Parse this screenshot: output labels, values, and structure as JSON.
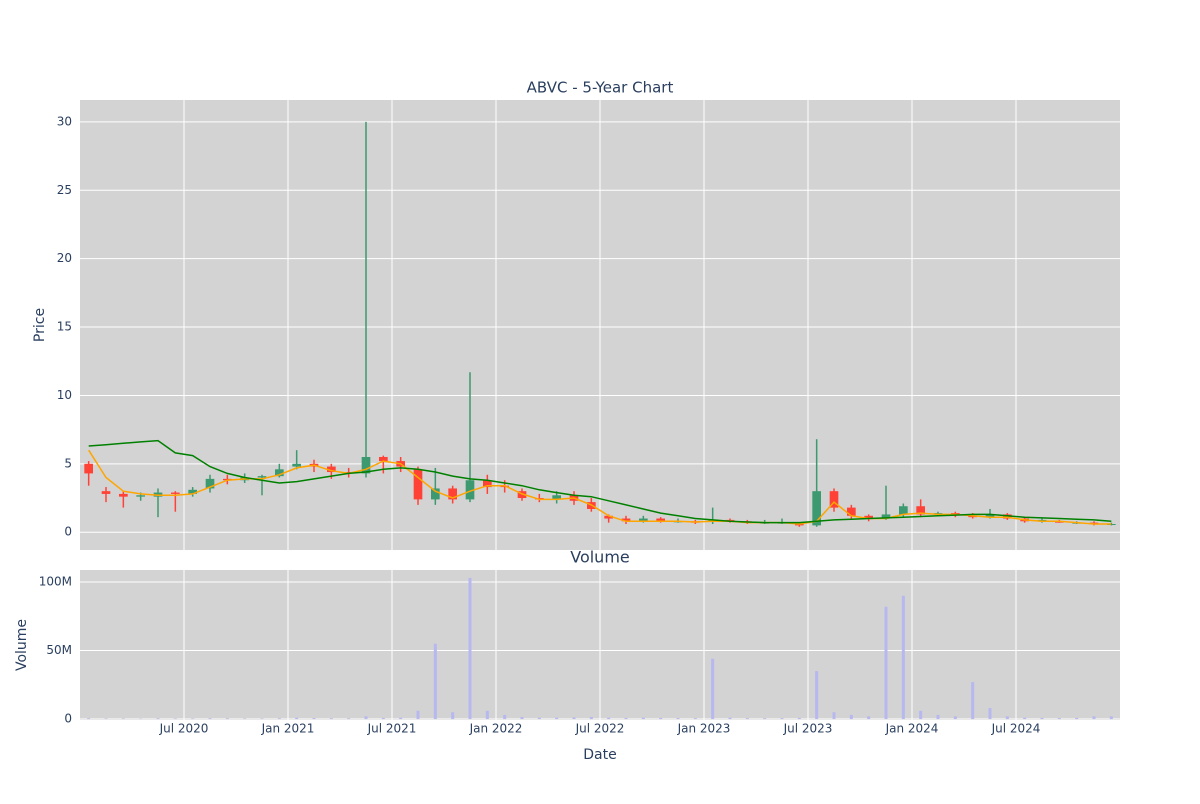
{
  "chart_data": [
    {
      "type": "candlestick",
      "title": "ABVC - 5-Year Chart",
      "y_label": "Price",
      "x": [
        "2020-01",
        "2020-02",
        "2020-03",
        "2020-04",
        "2020-05",
        "2020-06",
        "2020-07",
        "2020-08",
        "2020-09",
        "2020-10",
        "2020-11",
        "2020-12",
        "2021-01",
        "2021-02",
        "2021-03",
        "2021-04",
        "2021-05",
        "2021-06",
        "2021-07",
        "2021-08",
        "2021-09",
        "2021-10",
        "2021-11",
        "2021-12",
        "2022-01",
        "2022-02",
        "2022-03",
        "2022-04",
        "2022-05",
        "2022-06",
        "2022-07",
        "2022-08",
        "2022-09",
        "2022-10",
        "2022-11",
        "2022-12",
        "2023-01",
        "2023-02",
        "2023-03",
        "2023-04",
        "2023-05",
        "2023-06",
        "2023-07",
        "2023-08",
        "2023-09",
        "2023-10",
        "2023-11",
        "2023-12",
        "2024-01",
        "2024-02",
        "2024-03",
        "2024-04",
        "2024-05",
        "2024-06",
        "2024-07",
        "2024-08",
        "2024-09",
        "2024-10",
        "2024-11",
        "2024-12"
      ],
      "open": [
        5.0,
        3.0,
        2.8,
        2.6,
        2.6,
        2.9,
        2.8,
        3.2,
        3.9,
        3.8,
        4.0,
        4.1,
        4.8,
        5.0,
        4.8,
        4.4,
        4.3,
        5.5,
        5.2,
        4.6,
        2.4,
        3.2,
        2.4,
        3.8,
        3.4,
        3.0,
        2.5,
        2.4,
        2.7,
        2.2,
        1.2,
        1.0,
        0.8,
        1.0,
        0.8,
        0.8,
        0.8,
        0.9,
        0.8,
        0.7,
        0.7,
        0.6,
        0.5,
        3.0,
        1.8,
        1.2,
        1.0,
        1.3,
        1.9,
        1.3,
        1.4,
        1.2,
        1.1,
        1.3,
        1.0,
        0.8,
        0.8,
        0.7,
        0.7,
        0.6
      ],
      "high": [
        5.2,
        3.3,
        3.0,
        2.9,
        3.2,
        3.0,
        3.3,
        4.2,
        4.2,
        4.3,
        4.2,
        5.0,
        6.0,
        5.3,
        5.0,
        4.7,
        30.0,
        5.6,
        5.5,
        4.8,
        4.7,
        3.4,
        11.7,
        4.2,
        3.8,
        3.2,
        2.8,
        3.0,
        3.0,
        2.5,
        1.3,
        1.2,
        1.2,
        1.1,
        1.0,
        0.9,
        1.8,
        1.0,
        0.9,
        0.9,
        1.0,
        0.7,
        6.8,
        3.2,
        2.0,
        1.3,
        3.4,
        2.1,
        2.4,
        1.5,
        1.5,
        1.4,
        1.7,
        1.4,
        1.1,
        1.0,
        0.9,
        0.8,
        0.8,
        0.7
      ],
      "low": [
        3.4,
        2.2,
        1.8,
        2.3,
        1.1,
        1.5,
        2.6,
        2.9,
        3.5,
        3.6,
        2.7,
        4.0,
        4.6,
        4.4,
        3.9,
        4.0,
        4.0,
        4.3,
        4.4,
        2.0,
        2.0,
        2.1,
        2.2,
        2.8,
        2.9,
        2.3,
        2.2,
        2.1,
        2.0,
        1.5,
        0.7,
        0.6,
        0.7,
        0.7,
        0.7,
        0.6,
        0.6,
        0.7,
        0.6,
        0.6,
        0.6,
        0.4,
        0.4,
        1.5,
        1.0,
        0.8,
        0.9,
        1.1,
        1.1,
        1.2,
        1.1,
        1.0,
        1.0,
        0.9,
        0.7,
        0.7,
        0.7,
        0.6,
        0.5,
        0.5
      ],
      "close": [
        4.3,
        2.8,
        2.6,
        2.7,
        2.9,
        2.8,
        3.1,
        3.9,
        3.8,
        4.0,
        4.1,
        4.6,
        5.0,
        4.8,
        4.4,
        4.3,
        5.5,
        5.2,
        4.8,
        2.4,
        3.2,
        2.4,
        3.8,
        3.3,
        3.3,
        2.5,
        2.4,
        2.7,
        2.3,
        1.7,
        1.0,
        0.8,
        1.0,
        0.8,
        0.8,
        0.7,
        0.9,
        0.8,
        0.7,
        0.7,
        0.7,
        0.5,
        3.0,
        1.8,
        1.2,
        1.0,
        1.3,
        1.9,
        1.3,
        1.4,
        1.3,
        1.1,
        1.3,
        1.0,
        0.8,
        0.9,
        0.7,
        0.7,
        0.6,
        0.6
      ],
      "increasing_color": "#3d9970",
      "decreasing_color": "#ff4136",
      "lines": [
        {
          "color": "#ffa500",
          "values": [
            6.0,
            4.0,
            3.0,
            2.8,
            2.7,
            2.7,
            2.8,
            3.3,
            3.8,
            3.9,
            3.9,
            4.2,
            4.7,
            4.9,
            4.5,
            4.3,
            4.6,
            5.2,
            5.0,
            4.0,
            3.0,
            2.5,
            3.0,
            3.4,
            3.4,
            2.8,
            2.4,
            2.4,
            2.5,
            2.0,
            1.2,
            0.8,
            0.8,
            0.8,
            0.8,
            0.75,
            0.8,
            0.8,
            0.7,
            0.7,
            0.7,
            0.6,
            0.8,
            2.2,
            1.2,
            1.0,
            1.0,
            1.3,
            1.4,
            1.3,
            1.3,
            1.2,
            1.1,
            1.1,
            0.9,
            0.8,
            0.8,
            0.7,
            0.6,
            0.6
          ]
        },
        {
          "color": "#008000",
          "values": [
            6.3,
            6.4,
            6.5,
            6.6,
            6.7,
            5.8,
            5.6,
            4.8,
            4.3,
            4.0,
            3.8,
            3.6,
            3.7,
            3.9,
            4.1,
            4.3,
            4.4,
            4.6,
            4.7,
            4.6,
            4.4,
            4.1,
            3.9,
            3.8,
            3.6,
            3.4,
            3.1,
            2.9,
            2.7,
            2.6,
            2.3,
            2.0,
            1.7,
            1.4,
            1.2,
            1.0,
            0.9,
            0.8,
            0.75,
            0.7,
            0.7,
            0.7,
            0.8,
            0.9,
            0.95,
            1.0,
            1.05,
            1.1,
            1.15,
            1.2,
            1.25,
            1.3,
            1.3,
            1.2,
            1.1,
            1.05,
            1.0,
            0.95,
            0.9,
            0.8
          ]
        }
      ],
      "xlim": [
        "2020-01",
        "2025-01"
      ],
      "ylim": [
        -1.3,
        31.6
      ],
      "yticks": [
        0,
        5,
        10,
        15,
        20,
        25,
        30
      ],
      "grid": true
    },
    {
      "type": "bar",
      "title": "Volume",
      "x_label": "Date",
      "y_label": "Volume",
      "x": [
        "2020-01",
        "2020-02",
        "2020-03",
        "2020-04",
        "2020-05",
        "2020-06",
        "2020-07",
        "2020-08",
        "2020-09",
        "2020-10",
        "2020-11",
        "2020-12",
        "2021-01",
        "2021-02",
        "2021-03",
        "2021-04",
        "2021-05",
        "2021-06",
        "2021-07",
        "2021-08",
        "2021-09",
        "2021-10",
        "2021-11",
        "2021-12",
        "2022-01",
        "2022-02",
        "2022-03",
        "2022-04",
        "2022-05",
        "2022-06",
        "2022-07",
        "2022-08",
        "2022-09",
        "2022-10",
        "2022-11",
        "2022-12",
        "2023-01",
        "2023-02",
        "2023-03",
        "2023-04",
        "2023-05",
        "2023-06",
        "2023-07",
        "2023-08",
        "2023-09",
        "2023-10",
        "2023-11",
        "2023-12",
        "2024-01",
        "2024-02",
        "2024-03",
        "2024-04",
        "2024-05",
        "2024-06",
        "2024-07",
        "2024-08",
        "2024-09",
        "2024-10",
        "2024-11",
        "2024-12"
      ],
      "values": [
        500000,
        300000,
        300000,
        200000,
        400000,
        300000,
        300000,
        500000,
        400000,
        300000,
        300000,
        500000,
        1000000,
        700000,
        500000,
        400000,
        2000000,
        800000,
        1000000,
        6000000,
        55000000,
        5000000,
        103000000,
        6000000,
        3000000,
        1500000,
        1000000,
        1000000,
        1200000,
        1500000,
        1000000,
        800000,
        1000000,
        800000,
        700000,
        600000,
        44000000,
        1000000,
        600000,
        500000,
        600000,
        800000,
        35000000,
        5000000,
        3000000,
        2000000,
        82000000,
        90000000,
        6000000,
        3000000,
        2000000,
        27000000,
        8000000,
        2000000,
        1000000,
        800000,
        700000,
        800000,
        2000000,
        2000000
      ],
      "color": "#b8b8f0",
      "xlim": [
        "2020-01",
        "2025-01"
      ],
      "xticks": [
        {
          "value": "2020-07",
          "label": "Jul 2020"
        },
        {
          "value": "2021-01",
          "label": "Jan 2021"
        },
        {
          "value": "2021-07",
          "label": "Jul 2021"
        },
        {
          "value": "2022-01",
          "label": "Jan 2022"
        },
        {
          "value": "2022-07",
          "label": "Jul 2022"
        },
        {
          "value": "2023-01",
          "label": "Jan 2023"
        },
        {
          "value": "2023-07",
          "label": "Jul 2023"
        },
        {
          "value": "2024-01",
          "label": "Jan 2024"
        },
        {
          "value": "2024-07",
          "label": "Jul 2024"
        }
      ],
      "ylim": [
        -700000,
        108800000
      ],
      "yticks": [
        0,
        {
          "value": 50000000,
          "label": "50M"
        },
        {
          "value": 100000000,
          "label": "100M"
        }
      ],
      "grid": true
    }
  ]
}
